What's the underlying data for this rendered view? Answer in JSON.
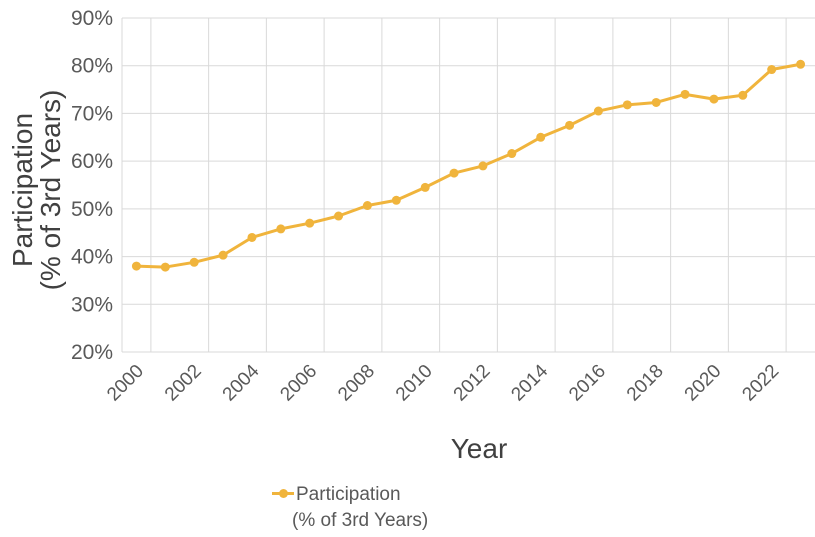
{
  "chart_data": {
    "type": "line",
    "xlabel": "Year",
    "ylabel_line1": "Participation",
    "ylabel_line2": "(% of 3rd Years)",
    "y_ticks": [
      "20%",
      "30%",
      "40%",
      "50%",
      "60%",
      "70%",
      "80%",
      "90%"
    ],
    "ylim": [
      20,
      90
    ],
    "x_ticks": [
      "2000",
      "2002",
      "2004",
      "2006",
      "2008",
      "2010",
      "2012",
      "2014",
      "2016",
      "2018",
      "2020",
      "2022"
    ],
    "grid": true,
    "legend_position": "bottom",
    "color": "#F0B43C",
    "series": [
      {
        "name_line1": "Participation",
        "name_line2": "(% of 3rd Years)",
        "x": [
          2000,
          2001,
          2002,
          2003,
          2004,
          2005,
          2006,
          2007,
          2008,
          2009,
          2010,
          2011,
          2012,
          2013,
          2014,
          2015,
          2016,
          2017,
          2018,
          2019,
          2020,
          2021,
          2022,
          2023
        ],
        "values": [
          38.0,
          37.8,
          38.8,
          40.3,
          44.0,
          45.8,
          47.0,
          48.5,
          50.7,
          51.8,
          54.5,
          57.5,
          59.0,
          61.6,
          65.0,
          67.5,
          70.5,
          71.8,
          72.3,
          74.0,
          73.0,
          73.8,
          79.2,
          80.3
        ]
      }
    ]
  }
}
